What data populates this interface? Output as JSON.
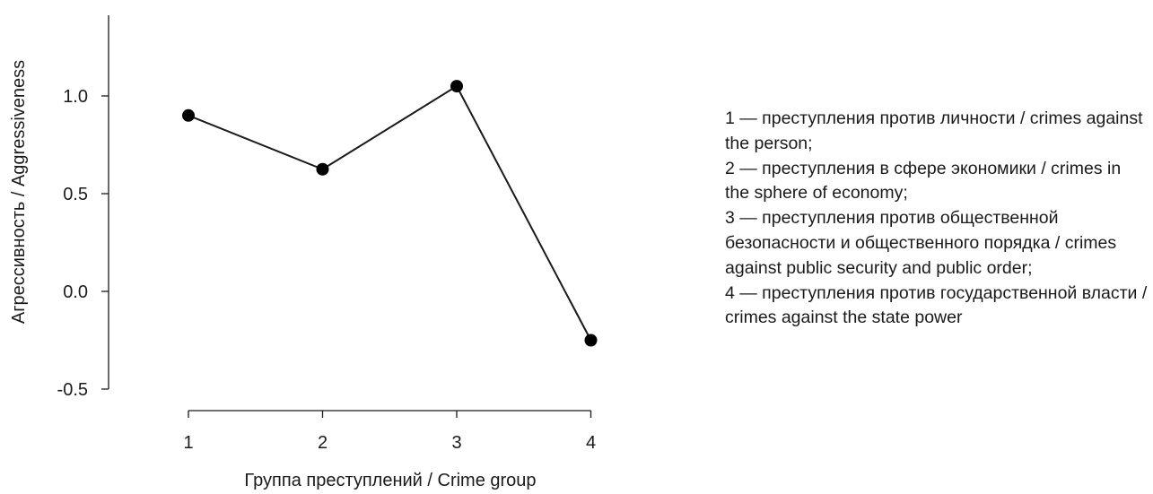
{
  "chart_data": {
    "type": "line",
    "title": "",
    "xlabel": "Группа преступлений / Crime group",
    "ylabel": "Агрессивность / Aggressiveness",
    "categories": [
      "1",
      "2",
      "3",
      "4"
    ],
    "x": [
      1,
      2,
      3,
      4
    ],
    "values": [
      0.9,
      0.625,
      1.05,
      -0.25
    ],
    "y_ticks": [
      "1.0",
      "0.5",
      "0.0",
      "-0.5"
    ],
    "y_tick_values": [
      1.0,
      0.5,
      0.0,
      -0.5
    ],
    "ylim": [
      -0.5,
      1.4
    ],
    "grid": false,
    "marker": "filled-circle",
    "line_color": "#1a1a1a"
  },
  "legend": [
    "1 — преступления против личности / crimes against the person;",
    "2 — преступления в сфере экономики / crimes in the sphere of economy;",
    "3 — преступления против общественной безопасности и общественного порядка / crimes against public security and public order;",
    "4 — преступления против государственной власти / crimes against the state power"
  ]
}
